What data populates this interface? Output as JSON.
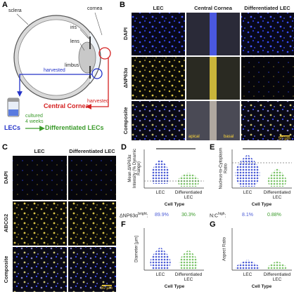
{
  "panels": {
    "a": {
      "label": "A",
      "sclera": "sclera",
      "cornea": "cornea",
      "iris": "iris",
      "lens": "lens",
      "limbus": "limbus",
      "harvested_blue": "harvested",
      "harvested_red": "harvested",
      "central_cornea": "Central Cornea",
      "cultured": "cultured",
      "weeks": "4 weeks",
      "lecs": "LECs",
      "differentiated_lecs": "Differentiated LECs"
    },
    "b": {
      "label": "B",
      "columns": [
        "LEC",
        "Central Cornea",
        "Differentiated LEC"
      ],
      "rows": [
        "DAPI",
        "ΔNP63α",
        "Composite"
      ],
      "apical": "apical",
      "basal": "basal",
      "scale_bar": "50 µm"
    },
    "c": {
      "label": "C",
      "columns": [
        "LEC",
        "Differentiated LEC"
      ],
      "rows": [
        "DAPI",
        "ABCG2",
        "Composite"
      ],
      "scale_bar": "50 µm"
    },
    "d": {
      "label": "D",
      "y_label": "Mean ΔNP63α Intensity (% Dynamic Range)",
      "categories": [
        "LEC",
        "Differentiated LEC"
      ],
      "x_label": "Cell Type"
    },
    "e": {
      "label": "E",
      "y_label": "Nucleus-to-Cytoplasm Ratio",
      "categories": [
        "LEC",
        "Differentiated LEC"
      ],
      "x_label": "Cell Type"
    },
    "f": {
      "label": "F",
      "y_label": "Diameter [µm]",
      "categories": [
        "LEC",
        "Differentiated LEC"
      ],
      "x_label": "Cell Type"
    },
    "g": {
      "label": "G",
      "y_label": "Aspect Ratio",
      "categories": [
        "LEC",
        "Differentiated LEC"
      ],
      "x_label": "Cell Type"
    },
    "bright": {
      "name": "ΔNP63α",
      "sup": "bright",
      "colon": ":",
      "values": [
        "89.9%",
        "30.3%"
      ]
    },
    "high": {
      "name": "N:C",
      "sup": "high",
      "colon": ":",
      "values": [
        "8.1%",
        "0.88%"
      ]
    }
  }
}
